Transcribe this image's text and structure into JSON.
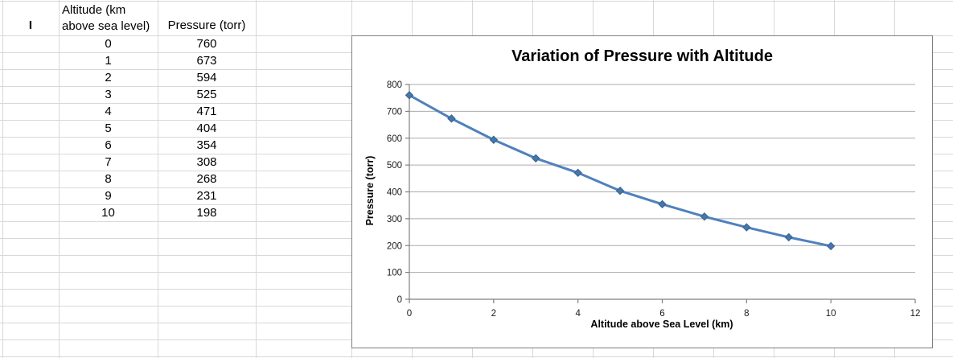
{
  "sheet": {
    "corner_label": "I",
    "altitude_header": [
      "Altitude (km",
      "above sea level)"
    ],
    "pressure_header": "Pressure (torr)",
    "rows": [
      {
        "altitude": "0",
        "pressure": "760"
      },
      {
        "altitude": "1",
        "pressure": "673"
      },
      {
        "altitude": "2",
        "pressure": "594"
      },
      {
        "altitude": "3",
        "pressure": "525"
      },
      {
        "altitude": "4",
        "pressure": "471"
      },
      {
        "altitude": "5",
        "pressure": "404"
      },
      {
        "altitude": "6",
        "pressure": "354"
      },
      {
        "altitude": "7",
        "pressure": "308"
      },
      {
        "altitude": "8",
        "pressure": "268"
      },
      {
        "altitude": "9",
        "pressure": "231"
      },
      {
        "altitude": "10",
        "pressure": "198"
      }
    ]
  },
  "chart_data": {
    "type": "line",
    "title": "Variation of Pressure with Altitude",
    "xlabel": "Altitude above Sea Level (km)",
    "ylabel": "Pressure (torr)",
    "x": [
      0,
      1,
      2,
      3,
      4,
      5,
      6,
      7,
      8,
      9,
      10
    ],
    "y": [
      760,
      673,
      594,
      525,
      471,
      404,
      354,
      308,
      268,
      231,
      198
    ],
    "xlim": [
      0,
      12
    ],
    "ylim": [
      0,
      800
    ],
    "x_ticks": [
      0,
      2,
      4,
      6,
      8,
      10,
      12
    ],
    "y_ticks": [
      0,
      100,
      200,
      300,
      400,
      500,
      600,
      700,
      800
    ],
    "grid": "horizontal-only",
    "legend_position": "none",
    "marker": "diamond",
    "colors": {
      "series_line": "#4F81BD",
      "marker_fill": "#4577AC",
      "marker_edge": "#38618C",
      "plot_gridline": "#ABABAB",
      "axis_line": "#808080",
      "tick_text": "#1a1a1a"
    }
  }
}
